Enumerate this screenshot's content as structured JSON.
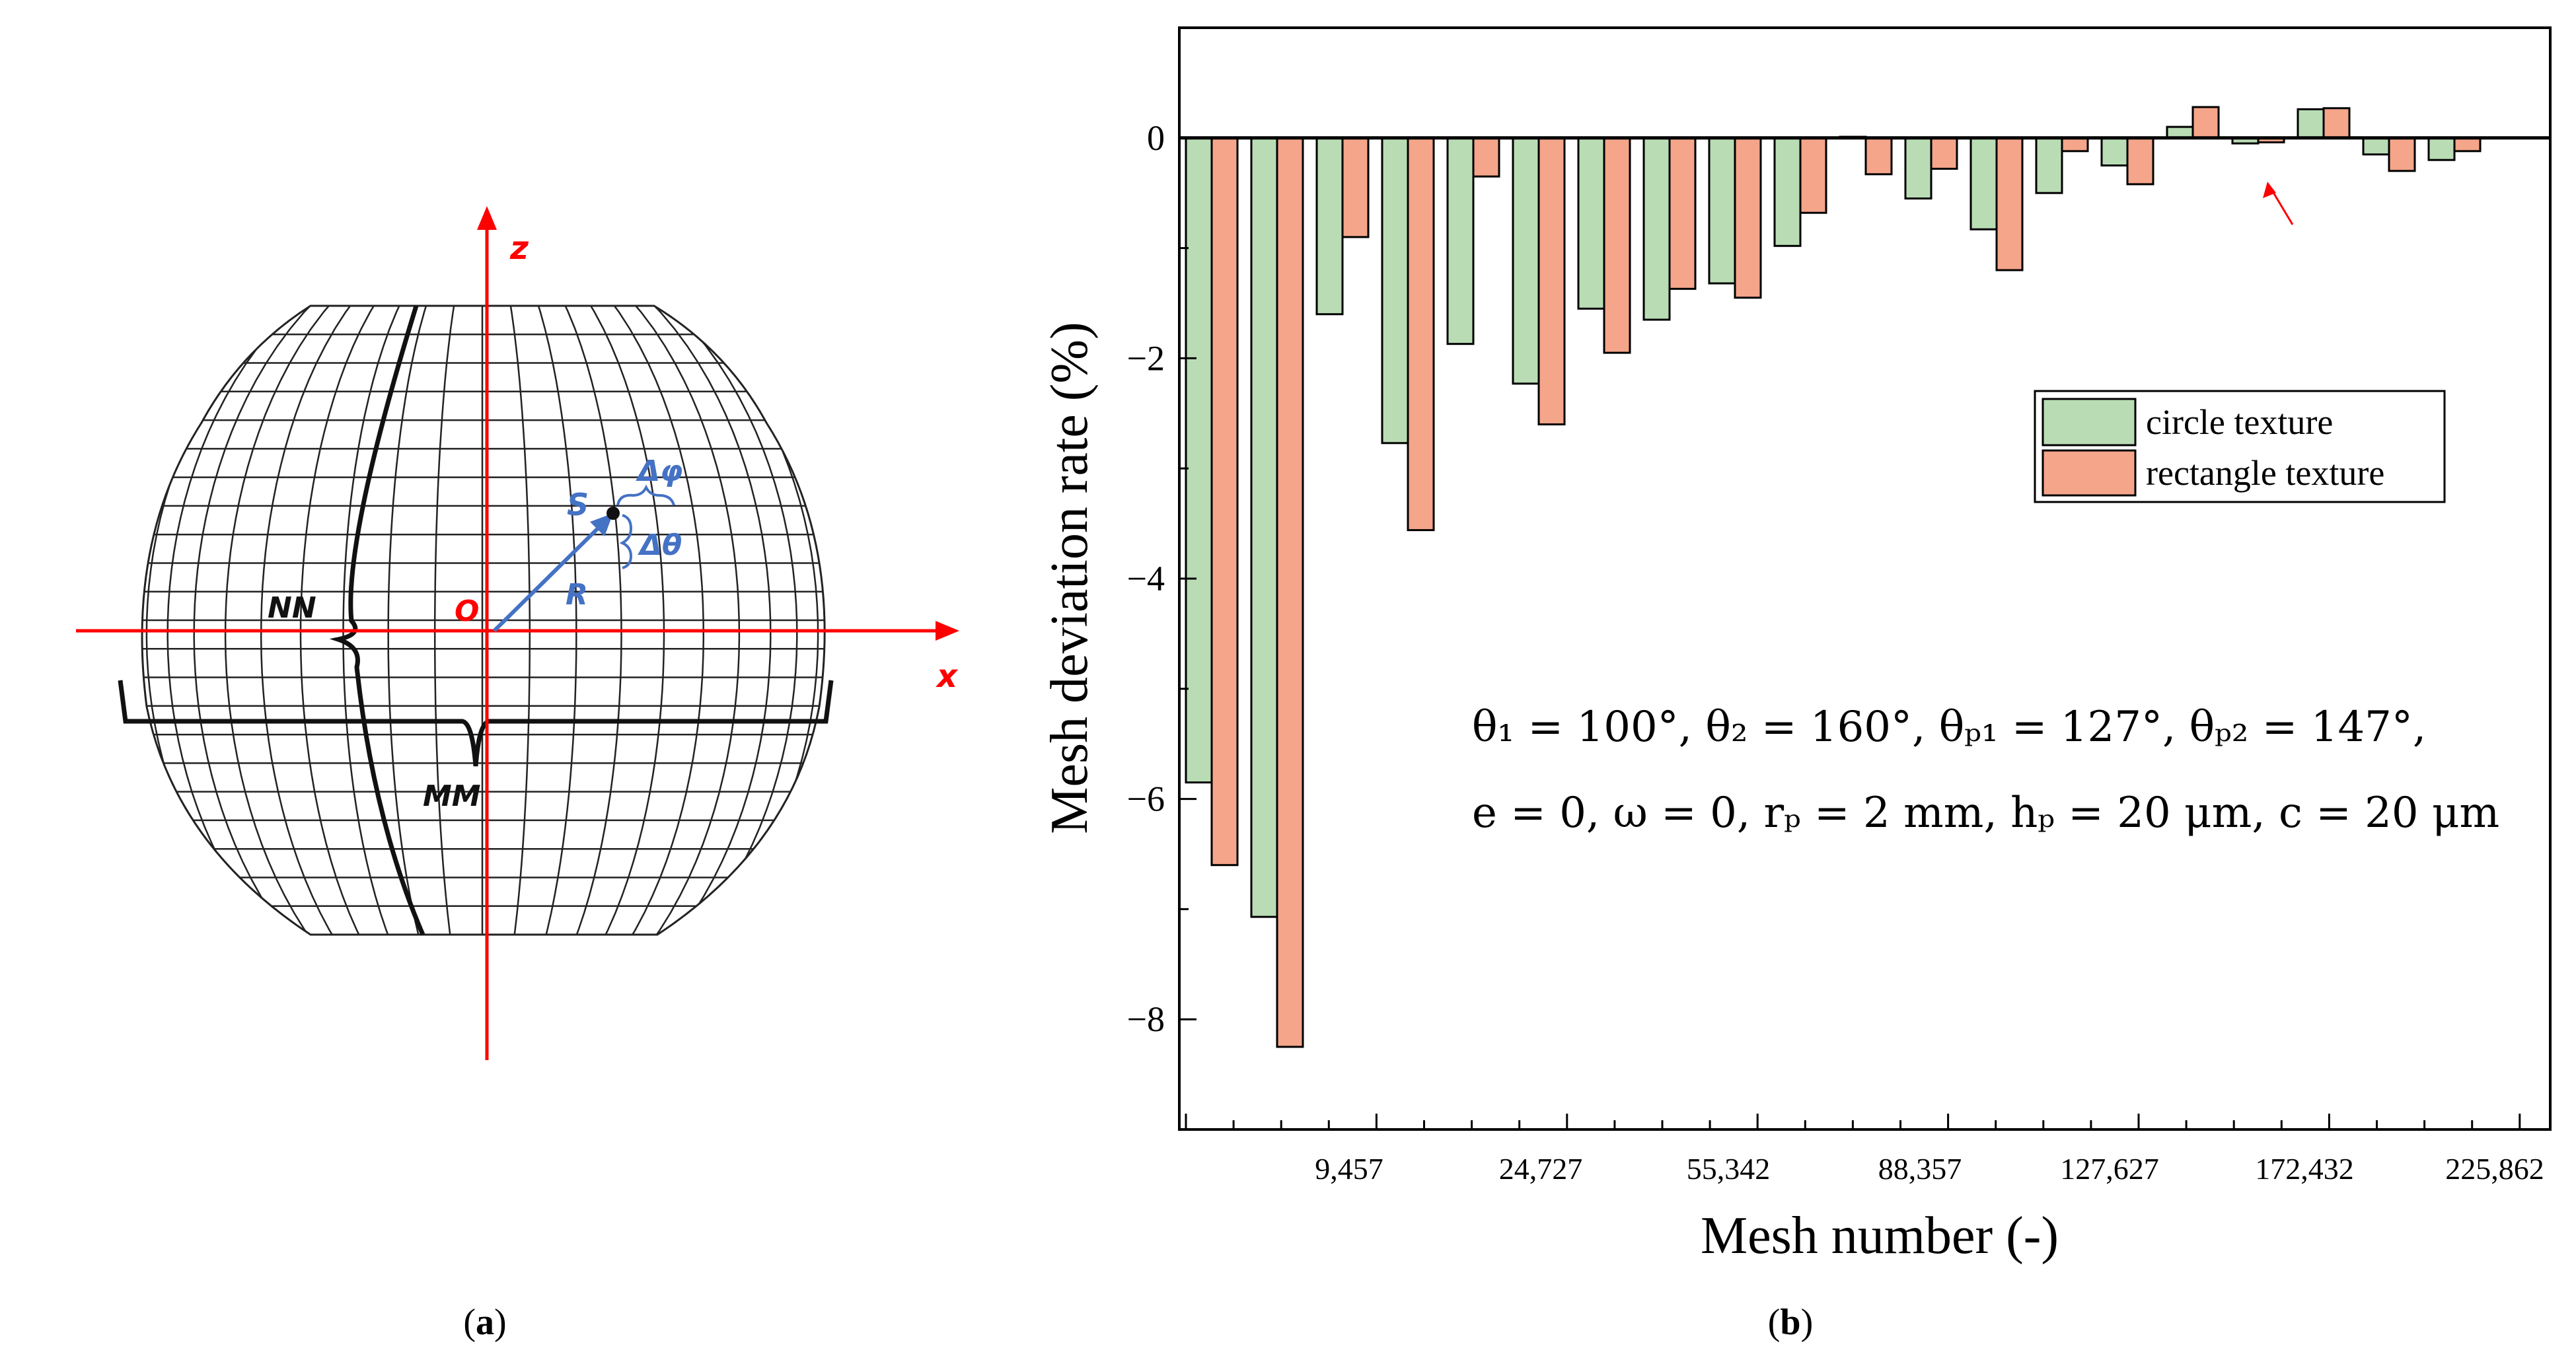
{
  "panel_a": {
    "caption_open": "(",
    "caption_letter": "a",
    "caption_close": ")",
    "axis_z": "z",
    "axis_x": "x",
    "label_origin": "O",
    "label_point": "S",
    "label_radius": "R",
    "label_dphi": "Δφ",
    "label_dtheta": "Δθ",
    "label_nn": "NN",
    "label_mm": "MM",
    "colors": {
      "axis": "#ff0000",
      "vector": "#4472c4",
      "grid": "#222222"
    }
  },
  "panel_b": {
    "caption_open": "(",
    "caption_letter": "b",
    "caption_close": ")",
    "formula_line1": "θ₁ = 100°, θ₂ = 160°, θₚ₁ = 127°, θₚ₂ = 147°,",
    "formula_line2": "e = 0, ω = 0, rₚ = 2 mm, hₚ = 20 μm, c = 20 μm",
    "colors": {
      "circle": "#b9dcb5",
      "rect": "#f4a58a",
      "arrow": "#ff0000",
      "frame": "#000000"
    }
  },
  "chart_data": {
    "type": "bar",
    "title": "",
    "xlabel": "Mesh number (-)",
    "ylabel": "Mesh deviation rate (%)",
    "ylim": [
      -9,
      1
    ],
    "yticks": [
      -8,
      -6,
      -4,
      -2,
      0
    ],
    "ytick_labels": [
      "−8",
      "−6",
      "−4",
      "−2",
      "0"
    ],
    "xtick_labels": [
      "9,457",
      "24,727",
      "55,342",
      "88,357",
      "127,627",
      "172,432",
      "225,862"
    ],
    "legend_position": "right",
    "series": [
      {
        "name": "circle texture",
        "values": [
          -5.85,
          -7.07,
          -1.6,
          -2.77,
          -1.87,
          -2.23,
          -1.55,
          -1.65,
          -1.32,
          -0.98,
          0.01,
          -0.55,
          -0.83,
          -0.5,
          -0.25,
          0.1,
          -0.05,
          0.26,
          -0.15,
          -0.2
        ]
      },
      {
        "name": "rectangle texture",
        "values": [
          -6.6,
          -8.25,
          -0.9,
          -3.56,
          -0.35,
          -2.6,
          -1.95,
          -1.37,
          -1.45,
          -0.68,
          -0.33,
          -0.28,
          -1.2,
          -0.12,
          -0.42,
          0.28,
          -0.04,
          0.27,
          -0.3,
          -0.12
        ]
      }
    ]
  }
}
